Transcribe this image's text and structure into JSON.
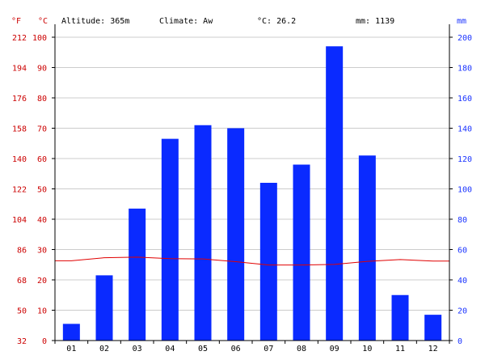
{
  "header": {
    "altitude": "Altitude: 365m",
    "climate": "Climate: Aw",
    "temp": "°C: 26.2",
    "precip": "mm: 1139"
  },
  "colors": {
    "bar": "#0a2aff",
    "temp_line": "#e00000",
    "axis_temp": "#cc0000",
    "axis_precip": "#1a33ff",
    "grid": "#cccccc"
  },
  "chart_data": {
    "type": "bar",
    "categories": [
      "01",
      "02",
      "03",
      "04",
      "05",
      "06",
      "07",
      "08",
      "09",
      "10",
      "11",
      "12"
    ],
    "series": [
      {
        "name": "",
        "kind": "bar",
        "axis": "mm",
        "values": [
          11,
          43,
          87,
          133,
          142,
          140,
          104,
          116,
          194,
          122,
          30,
          17
        ]
      },
      {
        "name": "",
        "kind": "line",
        "axis": "celsius",
        "values": [
          26.3,
          27.3,
          27.5,
          27.0,
          26.9,
          26.0,
          24.9,
          24.9,
          25.1,
          26.1,
          26.7,
          26.2
        ]
      }
    ],
    "axes": {
      "fahrenheit": {
        "unit": "°F",
        "ticks": [
          "212",
          "194",
          "176",
          "158",
          "140",
          "122",
          "104",
          "86",
          "68",
          "50",
          "32"
        ],
        "range": [
          32,
          212
        ]
      },
      "celsius": {
        "unit": "°C",
        "ticks": [
          "100",
          "90",
          "80",
          "70",
          "60",
          "50",
          "40",
          "30",
          "20",
          "10",
          "0"
        ],
        "range": [
          0,
          100
        ]
      },
      "mm": {
        "unit": "mm",
        "ticks": [
          "200",
          "180",
          "160",
          "140",
          "120",
          "100",
          "80",
          "60",
          "40",
          "20",
          "0"
        ],
        "range": [
          0,
          200
        ]
      }
    },
    "grid": true
  }
}
